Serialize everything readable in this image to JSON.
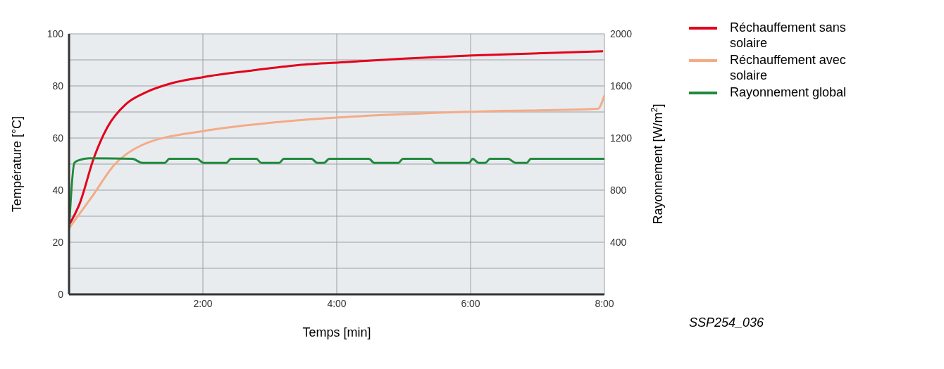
{
  "chart_data": {
    "type": "line",
    "xlabel": "Temps [min]",
    "ylabel": "Température [°C]",
    "y2label": "Rayonnement [W/m$^{2}$]",
    "xlim": [
      0,
      8
    ],
    "xticks": [
      {
        "value": 2,
        "label": "2:00"
      },
      {
        "value": 4,
        "label": "4:00"
      },
      {
        "value": 6,
        "label": "6:00"
      },
      {
        "value": 8,
        "label": "8:00"
      }
    ],
    "ylim": [
      0,
      100
    ],
    "yticks": [
      0,
      {
        "value": 10,
        "label": null
      },
      20,
      {
        "value": 30,
        "label": null
      },
      40,
      {
        "value": 50,
        "label": null
      },
      60,
      {
        "value": 70,
        "label": null
      },
      80,
      {
        "value": 90,
        "label": null
      },
      100
    ],
    "y2lim": [
      0,
      2000
    ],
    "y2ticks": [
      400,
      800,
      1200,
      1600,
      2000
    ],
    "grid": true,
    "legend": "top right",
    "marker": "none",
    "line_style": "solid",
    "annotations": [
      "SSP254_036"
    ],
    "series": [
      {
        "name": "Réchauffement sans solaire",
        "color": "#e3001b",
        "x": [
          0,
          0.16,
          0.37,
          0.57,
          0.85,
          1.12,
          1.53,
          2.01,
          2.73,
          3.42,
          4.17,
          5,
          6.02,
          7.98
        ],
        "values": [
          26.6,
          34.9,
          52.3,
          64,
          73,
          77.2,
          81,
          83.4,
          85.9,
          88,
          89.2,
          90.5,
          91.7,
          93.3
        ]
      },
      {
        "name": "Réchauffement avec solaire",
        "color": "#f4ab87",
        "x": [
          0,
          0.34,
          0.68,
          1.09,
          2.01,
          3.07,
          4.17,
          6.02,
          7.9,
          8
        ],
        "values": [
          25.4,
          37.4,
          49.8,
          57.3,
          62.7,
          66,
          68.1,
          70.1,
          71.2,
          76.4
        ]
      },
      {
        "name": "Rayonnement global",
        "color": "#1f8a3c",
        "axis": "y2",
        "x": [
          0,
          0.08,
          0.15,
          0.3,
          0.95,
          1.09,
          1.43,
          1.5,
          1.91,
          2.01,
          2.35,
          2.42,
          2.8,
          2.87,
          3.14,
          3.21,
          3.62,
          3.71,
          3.81,
          3.89,
          4.48,
          4.56,
          4.92,
          4.99,
          5.4,
          5.47,
          5.98,
          6.03,
          6.12,
          6.22,
          6.29,
          6.56,
          6.67,
          6.84,
          6.9,
          8
        ],
        "values": [
          500,
          1010,
          1030,
          1045,
          1040,
          1010,
          1010,
          1040,
          1040,
          1010,
          1010,
          1040,
          1040,
          1010,
          1010,
          1040,
          1040,
          1010,
          1010,
          1040,
          1040,
          1010,
          1010,
          1040,
          1040,
          1010,
          1010,
          1040,
          1010,
          1010,
          1040,
          1040,
          1010,
          1010,
          1040,
          1040
        ]
      }
    ]
  }
}
